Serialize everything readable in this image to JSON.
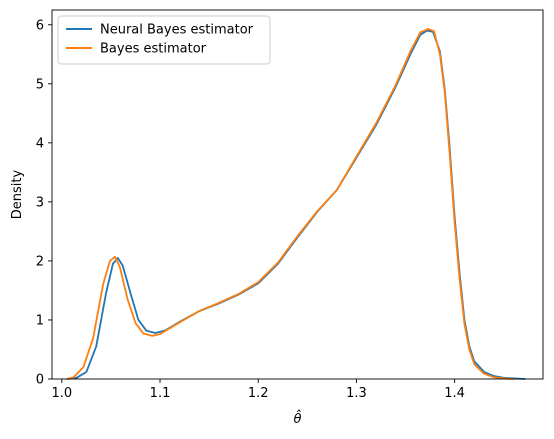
{
  "chart_data": {
    "type": "line",
    "title": "",
    "xlabel": "θ̂",
    "ylabel": "Density",
    "xlim": [
      0.99,
      1.49
    ],
    "ylim": [
      0,
      6.25
    ],
    "xticks": [
      1.0,
      1.1,
      1.2,
      1.3,
      1.4
    ],
    "xtick_labels": [
      "1.0",
      "1.1",
      "1.2",
      "1.3",
      "1.4"
    ],
    "yticks": [
      0,
      1,
      2,
      3,
      4,
      5,
      6
    ],
    "ytick_labels": [
      "0",
      "1",
      "2",
      "3",
      "4",
      "5",
      "6"
    ],
    "grid": false,
    "legend_position": "top-left",
    "series": [
      {
        "name": "Neural Bayes estimator",
        "color": "#1f77b4",
        "points": [
          [
            1.005,
            0.0
          ],
          [
            1.015,
            0.02
          ],
          [
            1.025,
            0.12
          ],
          [
            1.035,
            0.55
          ],
          [
            1.045,
            1.45
          ],
          [
            1.052,
            1.95
          ],
          [
            1.057,
            2.05
          ],
          [
            1.062,
            1.92
          ],
          [
            1.07,
            1.45
          ],
          [
            1.078,
            1.0
          ],
          [
            1.086,
            0.82
          ],
          [
            1.095,
            0.78
          ],
          [
            1.105,
            0.82
          ],
          [
            1.12,
            0.97
          ],
          [
            1.14,
            1.15
          ],
          [
            1.16,
            1.28
          ],
          [
            1.18,
            1.43
          ],
          [
            1.2,
            1.62
          ],
          [
            1.22,
            1.95
          ],
          [
            1.24,
            2.4
          ],
          [
            1.26,
            2.83
          ],
          [
            1.28,
            3.2
          ],
          [
            1.3,
            3.75
          ],
          [
            1.32,
            4.3
          ],
          [
            1.34,
            4.95
          ],
          [
            1.355,
            5.5
          ],
          [
            1.365,
            5.83
          ],
          [
            1.372,
            5.9
          ],
          [
            1.378,
            5.88
          ],
          [
            1.385,
            5.55
          ],
          [
            1.39,
            4.9
          ],
          [
            1.395,
            3.9
          ],
          [
            1.4,
            2.75
          ],
          [
            1.405,
            1.8
          ],
          [
            1.41,
            1.0
          ],
          [
            1.415,
            0.55
          ],
          [
            1.42,
            0.3
          ],
          [
            1.43,
            0.12
          ],
          [
            1.44,
            0.05
          ],
          [
            1.45,
            0.02
          ],
          [
            1.46,
            0.01
          ],
          [
            1.472,
            0.0
          ]
        ]
      },
      {
        "name": "Bayes estimator",
        "color": "#ff7f0e",
        "points": [
          [
            1.005,
            0.0
          ],
          [
            1.012,
            0.03
          ],
          [
            1.022,
            0.2
          ],
          [
            1.032,
            0.7
          ],
          [
            1.042,
            1.6
          ],
          [
            1.049,
            2.0
          ],
          [
            1.054,
            2.07
          ],
          [
            1.059,
            1.9
          ],
          [
            1.067,
            1.35
          ],
          [
            1.075,
            0.95
          ],
          [
            1.083,
            0.77
          ],
          [
            1.092,
            0.73
          ],
          [
            1.1,
            0.76
          ],
          [
            1.12,
            0.96
          ],
          [
            1.14,
            1.15
          ],
          [
            1.16,
            1.29
          ],
          [
            1.18,
            1.44
          ],
          [
            1.2,
            1.64
          ],
          [
            1.22,
            1.97
          ],
          [
            1.24,
            2.42
          ],
          [
            1.26,
            2.84
          ],
          [
            1.28,
            3.2
          ],
          [
            1.3,
            3.77
          ],
          [
            1.32,
            4.33
          ],
          [
            1.34,
            4.98
          ],
          [
            1.355,
            5.55
          ],
          [
            1.365,
            5.87
          ],
          [
            1.373,
            5.93
          ],
          [
            1.379,
            5.89
          ],
          [
            1.385,
            5.5
          ],
          [
            1.39,
            4.85
          ],
          [
            1.395,
            3.8
          ],
          [
            1.4,
            2.65
          ],
          [
            1.405,
            1.7
          ],
          [
            1.41,
            0.93
          ],
          [
            1.415,
            0.5
          ],
          [
            1.42,
            0.25
          ],
          [
            1.43,
            0.09
          ],
          [
            1.44,
            0.03
          ],
          [
            1.45,
            0.01
          ],
          [
            1.46,
            0.0
          ]
        ]
      }
    ]
  }
}
